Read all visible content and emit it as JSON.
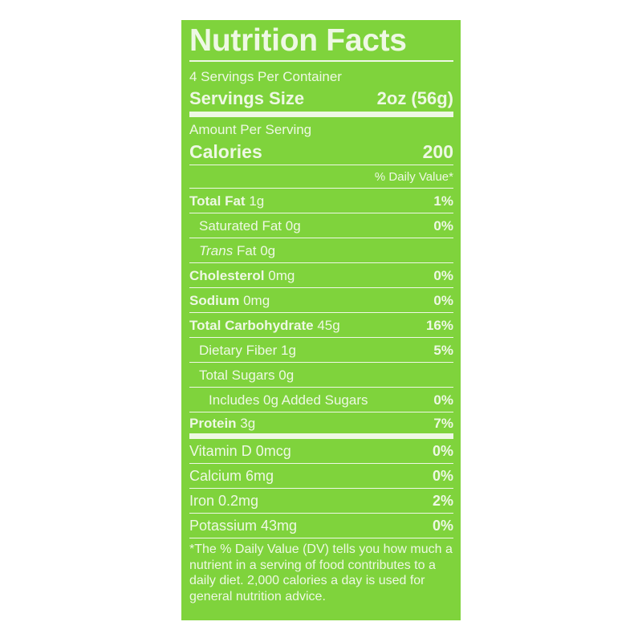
{
  "title": "Nutrition Facts",
  "servings_per_container": "4 Servings Per Container",
  "serving_size_label": "Servings Size",
  "serving_size_value": "2oz (56g)",
  "amount_per_serving": "Amount Per Serving",
  "calories_label": "Calories",
  "calories_value": "200",
  "daily_value_header": "% Daily Value*",
  "nutrients": [
    {
      "name": "Total Fat",
      "amount": "1g",
      "dv": "1%"
    },
    {
      "name": "Saturated Fat",
      "amount": "0g",
      "dv": "0%"
    },
    {
      "name": "Trans",
      "name_suffix": "Fat 0g",
      "amount": "",
      "dv": ""
    },
    {
      "name": "Cholesterol",
      "amount": "0mg",
      "dv": "0%"
    },
    {
      "name": "Sodium",
      "amount": "0mg",
      "dv": "0%"
    },
    {
      "name": "Total Carbohydrate",
      "amount": "45g",
      "dv": "16%"
    },
    {
      "name": "Dietary Fiber",
      "amount": "1g",
      "dv": "5%"
    },
    {
      "name": "Total Sugars",
      "amount": "0g",
      "dv": ""
    },
    {
      "name": "Includes 0g Added Sugars",
      "amount": "",
      "dv": "0%"
    },
    {
      "name": "Protein",
      "amount": "3g",
      "dv": "7%"
    }
  ],
  "micros": [
    {
      "name": "Vitamin D 0mcg",
      "dv": "0%"
    },
    {
      "name": "Calcium 6mg",
      "dv": "0%"
    },
    {
      "name": "Iron 0.2mg",
      "dv": "2%"
    },
    {
      "name": "Potassium 43mg",
      "dv": "0%"
    }
  ],
  "footnote": "*The % Daily Value (DV) tells you how much a nutrient in a serving of food contributes to a daily diet. 2,000 calories a day is used for general nutrition advice.",
  "colors": {
    "background": "#7fd33c",
    "text": "#eef8e4"
  }
}
